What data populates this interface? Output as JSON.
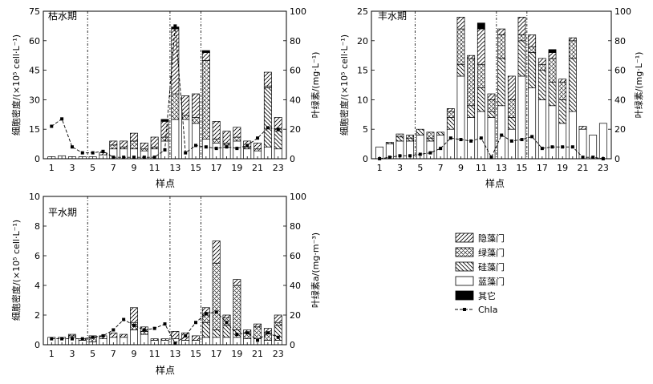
{
  "legend": {
    "items": [
      {
        "key": "cryptophyta",
        "label": "隐藻门",
        "swatch": "diag-right"
      },
      {
        "key": "chlorophyta",
        "label": "绿藻门",
        "swatch": "crosshatch"
      },
      {
        "key": "bacillariophyta",
        "label": "硅藻门",
        "swatch": "diag-left"
      },
      {
        "key": "cyanophyta",
        "label": "蓝藻门",
        "swatch": "white"
      },
      {
        "key": "other",
        "label": "其它",
        "swatch": "black"
      },
      {
        "key": "chla",
        "label": "Chla",
        "swatch": "line-marker"
      }
    ]
  },
  "chart_data": [
    {
      "type": "bar",
      "panel_label": "枯水期",
      "xlabel": "样点",
      "ylabel": "细胞密度/(×10⁵ cell·L⁻¹)",
      "y2label": "叶绿素/(mg·L⁻¹)",
      "ylim": [
        0,
        75
      ],
      "yticks": [
        0,
        15,
        30,
        45,
        60,
        75
      ],
      "y2lim": [
        0,
        100
      ],
      "y2ticks": [
        0,
        20,
        40,
        60,
        80,
        100
      ],
      "x": [
        1,
        2,
        3,
        4,
        5,
        6,
        7,
        8,
        9,
        10,
        11,
        12,
        13,
        14,
        15,
        16,
        17,
        18,
        19,
        20,
        21,
        22,
        23
      ],
      "xticks": [
        1,
        3,
        5,
        7,
        9,
        11,
        13,
        15,
        17,
        19,
        21,
        23
      ],
      "dividers_after": [
        4.5,
        12.5,
        15.5
      ],
      "series": [
        {
          "name": "蓝藻门",
          "key": "cyanophyta",
          "values": [
            1,
            1.5,
            1,
            1,
            1,
            2,
            5,
            5,
            5,
            4,
            5,
            9,
            20,
            20,
            18,
            10,
            8,
            7,
            9,
            5,
            4,
            6,
            5
          ]
        },
        {
          "name": "硅藻门",
          "key": "bacillariophyta",
          "values": [
            0,
            0,
            0,
            0,
            0,
            0,
            0,
            0,
            0,
            0,
            0,
            0,
            0,
            0,
            0,
            0,
            0,
            0,
            0,
            0,
            0,
            30,
            9
          ]
        },
        {
          "name": "绿藻门",
          "key": "chlorophyta",
          "values": [
            0,
            0,
            0,
            0,
            0,
            0,
            2,
            1,
            4,
            1,
            1,
            2,
            13,
            2,
            3,
            40,
            2,
            1,
            2,
            1,
            1,
            1,
            1
          ]
        },
        {
          "name": "隐藻门",
          "key": "cryptophyta",
          "values": [
            0,
            0,
            0,
            0,
            0,
            1,
            2,
            3,
            4,
            3,
            5,
            8,
            33,
            10,
            12,
            4,
            9,
            6,
            5,
            3,
            3,
            7,
            6
          ]
        },
        {
          "name": "其它",
          "key": "other",
          "values": [
            0,
            0,
            0,
            0,
            0,
            0,
            0,
            0,
            0,
            0,
            0,
            1,
            1,
            0,
            0,
            1,
            0,
            0,
            0,
            0,
            0,
            0,
            0
          ]
        }
      ],
      "chla": [
        22,
        27,
        8,
        4,
        4,
        5,
        1,
        1,
        1,
        1,
        1,
        6,
        90,
        4,
        9,
        8,
        7,
        8,
        7,
        9,
        14,
        21,
        20
      ]
    },
    {
      "type": "bar",
      "panel_label": "丰水期",
      "xlabel": "样点",
      "ylabel": "细胞密度/(×10⁵ cell·L⁻¹)",
      "y2label": "叶绿素/(mg·L⁻¹)",
      "ylim": [
        0,
        25
      ],
      "yticks": [
        0,
        5,
        10,
        15,
        20,
        25
      ],
      "y2lim": [
        0,
        100
      ],
      "y2ticks": [
        0,
        20,
        40,
        60,
        80,
        100
      ],
      "x": [
        1,
        2,
        3,
        4,
        5,
        6,
        7,
        8,
        9,
        10,
        11,
        12,
        13,
        14,
        15,
        16,
        17,
        18,
        19,
        20,
        21,
        22,
        23
      ],
      "xticks": [
        1,
        3,
        5,
        7,
        9,
        11,
        13,
        15,
        17,
        19,
        21,
        23
      ],
      "dividers_after": [
        4.5,
        12.5,
        15.5
      ],
      "series": [
        {
          "name": "蓝藻门",
          "key": "cyanophyta",
          "values": [
            2,
            2.5,
            3,
            3,
            4,
            3,
            4,
            5,
            14,
            7,
            8,
            7,
            9,
            5,
            14,
            12,
            10,
            9,
            6,
            8,
            5,
            4,
            6
          ]
        },
        {
          "name": "硅藻门",
          "key": "bacillariophyta",
          "values": [
            0,
            0.3,
            0.7,
            0.5,
            1,
            0.5,
            0.5,
            2,
            2,
            2,
            4,
            1,
            8,
            2,
            6,
            6,
            5,
            4,
            4,
            9,
            0,
            0,
            0
          ]
        },
        {
          "name": "绿藻门",
          "key": "chlorophyta",
          "values": [
            0,
            0,
            0.5,
            0.5,
            0,
            1,
            0,
            1,
            6,
            8,
            4,
            2,
            4,
            3,
            1,
            1,
            1,
            4,
            3,
            3,
            0,
            0,
            0
          ]
        },
        {
          "name": "隐藻门",
          "key": "cryptophyta",
          "values": [
            0,
            0,
            0,
            0,
            0,
            0,
            0,
            0.5,
            2,
            0.5,
            6,
            1,
            1,
            4,
            3,
            2,
            1,
            1,
            0.5,
            0.5,
            0.5,
            0,
            0
          ]
        },
        {
          "name": "其它",
          "key": "other",
          "values": [
            0,
            0,
            0,
            0,
            0,
            0,
            0,
            0,
            0,
            0,
            1,
            0,
            0,
            0,
            0,
            0,
            0,
            0.5,
            0,
            0,
            0,
            0,
            0
          ]
        }
      ],
      "chla": [
        0,
        1,
        2,
        2,
        3,
        4,
        7,
        14,
        13,
        12,
        14,
        1,
        16,
        12,
        13,
        15,
        7,
        8,
        8,
        8,
        1,
        1,
        0
      ]
    },
    {
      "type": "bar",
      "panel_label": "平水期",
      "xlabel": "样点",
      "ylabel": "细胞密度/(×10⁵ cell·L⁻¹)",
      "y2label": "叶绿素a/(mg·m⁻³)",
      "ylim": [
        0,
        10
      ],
      "yticks": [
        0,
        2,
        4,
        6,
        8,
        10
      ],
      "y2lim": [
        0,
        100
      ],
      "y2ticks": [
        0,
        20,
        40,
        60,
        80,
        100
      ],
      "x": [
        1,
        2,
        3,
        4,
        5,
        6,
        7,
        8,
        9,
        10,
        11,
        12,
        13,
        14,
        15,
        16,
        17,
        18,
        19,
        20,
        21,
        22,
        23
      ],
      "xticks": [
        1,
        3,
        5,
        7,
        9,
        11,
        13,
        15,
        17,
        19,
        21,
        23
      ],
      "dividers_after": [
        4.5,
        12.5,
        15.5
      ],
      "series": [
        {
          "name": "蓝藻门",
          "key": "cyanophyta",
          "values": [
            0.5,
            0.5,
            0.5,
            0.3,
            0.2,
            0.4,
            0.5,
            0.5,
            1,
            0.7,
            0.3,
            0.3,
            0.4,
            0.3,
            0.3,
            0.5,
            0.5,
            0.5,
            0.5,
            0.4,
            0.4,
            0.3,
            0.3
          ]
        },
        {
          "name": "硅藻门",
          "key": "bacillariophyta",
          "values": [
            0,
            0,
            0,
            0,
            0,
            0,
            0,
            0,
            0,
            0,
            0,
            0,
            0,
            0,
            0,
            1,
            0.5,
            0.8,
            0.5,
            0,
            0,
            0,
            1
          ]
        },
        {
          "name": "绿藻门",
          "key": "chlorophyta",
          "values": [
            0,
            0,
            0.1,
            0,
            0.3,
            0,
            0,
            0,
            0.5,
            0.2,
            0,
            0,
            0,
            0,
            0,
            0.5,
            4.5,
            0.5,
            3,
            0.4,
            0.8,
            0.5,
            0.2
          ]
        },
        {
          "name": "隐藻门",
          "key": "cryptophyta",
          "values": [
            0,
            0,
            0.1,
            0.1,
            0.1,
            0.2,
            0.3,
            0.2,
            1,
            0.3,
            0.1,
            0.1,
            0.5,
            0.5,
            0.3,
            0.5,
            1.5,
            0.2,
            0.4,
            0.2,
            0.2,
            0.3,
            0.5
          ]
        },
        {
          "name": "其它",
          "key": "other",
          "values": [
            0,
            0,
            0,
            0,
            0,
            0,
            0,
            0,
            0,
            0,
            0,
            0,
            0,
            0,
            0,
            0,
            0,
            0,
            0,
            0,
            0,
            0,
            0
          ]
        }
      ],
      "chla": [
        4,
        4,
        4,
        4,
        5,
        6,
        10,
        17,
        13,
        10,
        11,
        14,
        1,
        6,
        15,
        21,
        22,
        15,
        7,
        8,
        3,
        8,
        5
      ]
    }
  ]
}
